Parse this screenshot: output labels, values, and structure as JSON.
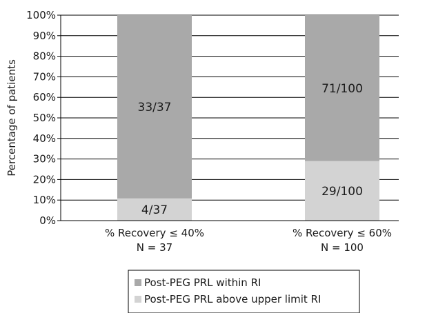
{
  "chart_data": {
    "type": "bar",
    "stacked": true,
    "title": "",
    "xlabel": "",
    "ylabel": "Percentage of patients",
    "ylim": [
      0,
      100
    ],
    "yticks": [
      "0%",
      "10%",
      "20%",
      "30%",
      "40%",
      "50%",
      "60%",
      "70%",
      "80%",
      "90%",
      "100%"
    ],
    "grid": true,
    "legend_position": "bottom",
    "categories": [
      {
        "line1": "% Recovery ≤ 40%",
        "line2": "N = 37"
      },
      {
        "line1": "% Recovery ≤ 60%",
        "line2": "N = 100"
      }
    ],
    "series": [
      {
        "name": "Post-PEG PRL above upper limit RI",
        "color": "#d3d3d3",
        "values": [
          10.8,
          29
        ],
        "labels": [
          "4/37",
          "29/100"
        ]
      },
      {
        "name": "Post-PEG PRL within RI",
        "color": "#a9a9a9",
        "values": [
          89.2,
          71
        ],
        "labels": [
          "33/37",
          "71/100"
        ]
      }
    ],
    "legend_order": [
      1,
      0
    ]
  }
}
